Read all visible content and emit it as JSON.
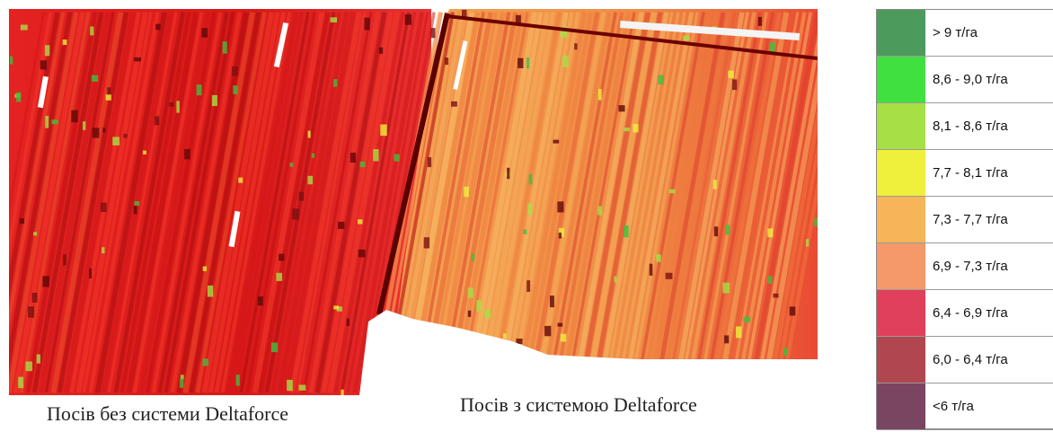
{
  "map": {
    "left_field_caption": "Посів без системи Deltaforce",
    "right_field_caption": "Посів з системою Deltaforce"
  },
  "legend": {
    "items": [
      {
        "label": "> 9 т/га",
        "color": "#4c9a5c"
      },
      {
        "label": "8,6 - 9,0 т/га",
        "color": "#3fe03f"
      },
      {
        "label": "8,1 - 8,6 т/га",
        "color": "#a6e045"
      },
      {
        "label": "7,7 - 8,1 т/га",
        "color": "#eef03c"
      },
      {
        "label": "7,3 - 7,7 т/га",
        "color": "#f7b55a"
      },
      {
        "label": "6,9 - 7,3 т/га",
        "color": "#f5996a"
      },
      {
        "label": "6,4 - 6,9 т/га",
        "color": "#e0405a"
      },
      {
        "label": "6,0 - 6,4 т/га",
        "color": "#b0474f"
      },
      {
        "label": "<6 т/га",
        "color": "#7a4560"
      }
    ]
  },
  "colors": {
    "field_left_base": "#e41b1b",
    "field_right_base": "#f39a4a",
    "field_dark": "#9e1010",
    "track_line": "#6a0000"
  }
}
